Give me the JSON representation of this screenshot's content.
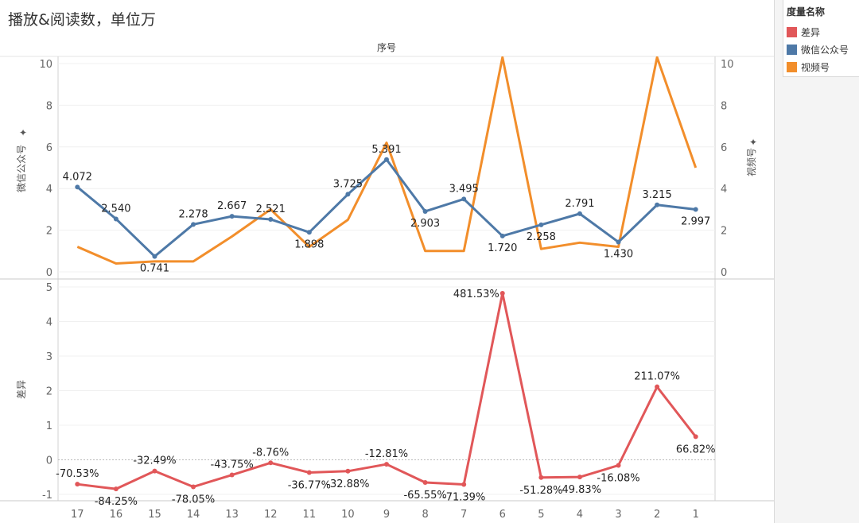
{
  "title": "播放&阅读数，单位万",
  "legend": {
    "title": "度量名称",
    "items": [
      {
        "label": "差异",
        "color": "#e15759"
      },
      {
        "label": "微信公众号",
        "color": "#4e79a7"
      },
      {
        "label": "视频号",
        "color": "#f28e2b"
      }
    ]
  },
  "chart_data": {
    "type": "line",
    "header": "序号",
    "categories": [
      "17",
      "16",
      "15",
      "14",
      "13",
      "12",
      "11",
      "10",
      "9",
      "8",
      "7",
      "6",
      "5",
      "4",
      "3",
      "2",
      "1"
    ],
    "top": {
      "left_axis_label": "微信公众号",
      "right_axis_label": "视频号",
      "ylim": [
        0,
        10
      ],
      "ticks": [
        "0",
        "2",
        "4",
        "6",
        "8",
        "10"
      ],
      "series": [
        {
          "name": "微信公众号",
          "color": "#4e79a7",
          "values": [
            4.072,
            2.54,
            0.741,
            2.278,
            2.667,
            2.521,
            1.898,
            3.725,
            5.391,
            2.903,
            3.495,
            1.72,
            2.258,
            2.791,
            1.43,
            3.215,
            2.997
          ],
          "labels": [
            "4.072",
            "2.540",
            "0.741",
            "2.278",
            "2.667",
            "2.521",
            "1.898",
            "3.725",
            "5.391",
            "2.903",
            "3.495",
            "1.720",
            "2.258",
            "2.791",
            "1.430",
            "3.215",
            "2.997"
          ]
        },
        {
          "name": "视频号",
          "color": "#f28e2b",
          "values": [
            1.2,
            0.4,
            0.5,
            0.5,
            1.7,
            3.0,
            1.2,
            2.5,
            6.2,
            1.0,
            1.0,
            10.3,
            1.1,
            1.4,
            1.2,
            10.3,
            5.0
          ]
        }
      ]
    },
    "bottom": {
      "axis_label": "差异",
      "ylim": [
        -1.1,
        5.1
      ],
      "ticks": [
        "-1",
        "0",
        "1",
        "2",
        "3",
        "4",
        "5"
      ],
      "series": [
        {
          "name": "差异",
          "color": "#e15759",
          "values": [
            -0.7053,
            -0.8425,
            -0.3249,
            -0.7805,
            -0.4375,
            -0.0876,
            -0.3677,
            -0.3288,
            -0.1281,
            -0.6555,
            -0.7139,
            4.8153,
            -0.5128,
            -0.4983,
            -0.1608,
            2.1107,
            0.6682
          ],
          "labels": [
            "-70.53%",
            "-84.25%",
            "-32.49%",
            "-78.05%",
            "-43.75%",
            "-8.76%",
            "-36.77%",
            "-32.88%",
            "-12.81%",
            "-65.55%",
            "-71.39%",
            "481.53%",
            "-51.28%",
            "-49.83%",
            "-16.08%",
            "211.07%",
            "66.82%"
          ]
        }
      ]
    }
  }
}
